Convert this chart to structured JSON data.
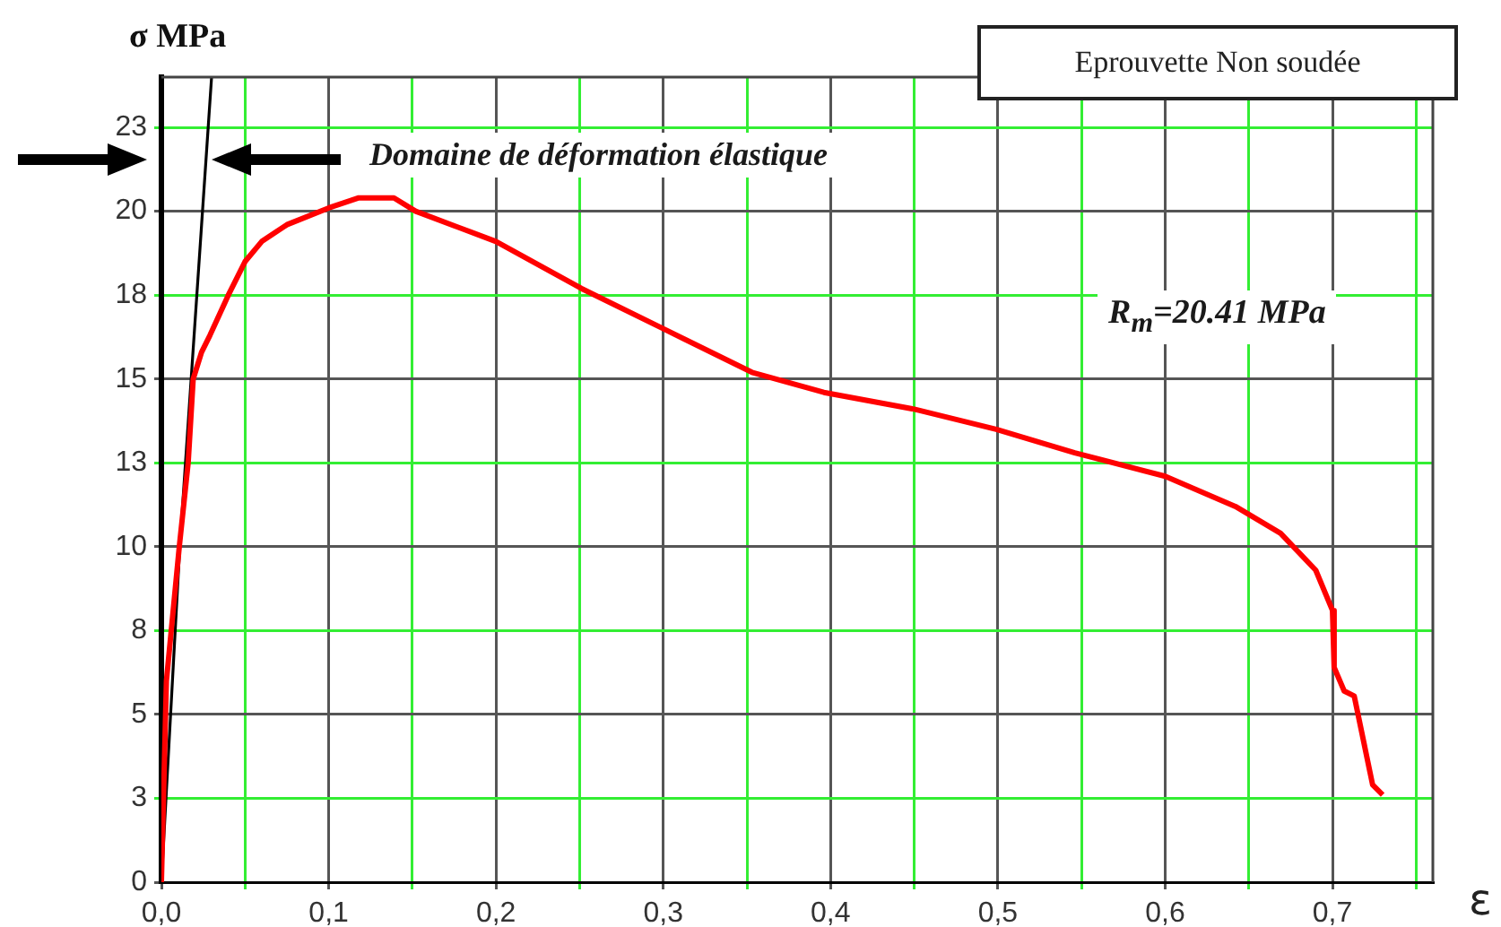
{
  "chart_data": {
    "type": "line",
    "title": "Eprouvette Non soudée",
    "xlabel": "ε",
    "ylabel": "σ MPa",
    "annotations": [
      "Domaine de déformation élastique",
      "R$_{m}$=20.41 MPa"
    ],
    "xlim": [
      0,
      0.76
    ],
    "ylim": [
      0,
      24
    ],
    "xticks": [
      {
        "value": 0,
        "label": "0,0"
      },
      {
        "value": 0.05,
        "label": null
      },
      {
        "value": 0.1,
        "label": "0,1"
      },
      {
        "value": 0.15,
        "label": null
      },
      {
        "value": 0.2,
        "label": "0,2"
      },
      {
        "value": 0.25,
        "label": null
      },
      {
        "value": 0.3,
        "label": "0,3"
      },
      {
        "value": 0.35,
        "label": null
      },
      {
        "value": 0.4,
        "label": "0,4"
      },
      {
        "value": 0.45,
        "label": null
      },
      {
        "value": 0.5,
        "label": "0,5"
      },
      {
        "value": 0.55,
        "label": null
      },
      {
        "value": 0.6,
        "label": "0,6"
      },
      {
        "value": 0.65,
        "label": null
      },
      {
        "value": 0.7,
        "label": "0,7"
      },
      {
        "value": 0.75,
        "label": null
      }
    ],
    "yticks": [
      0,
      {
        "value": 2.5,
        "label": "3"
      },
      5,
      {
        "value": 7.5,
        "label": "8"
      },
      10,
      {
        "value": 12.5,
        "label": "13"
      },
      15,
      {
        "value": 17.5,
        "label": "18"
      },
      20,
      {
        "value": 22.5,
        "label": "23"
      }
    ],
    "grid": true,
    "legend": false,
    "marker": "none",
    "line_style": "solid",
    "series": [
      {
        "color": "#ff0000",
        "x": [
          0,
          0.003,
          0.0107,
          0.016,
          0.019,
          0.024,
          0.029,
          0.04,
          0.05,
          0.06,
          0.075,
          0.1,
          0.118,
          0.139,
          0.152,
          0.2,
          0.251,
          0.3,
          0.353,
          0.396,
          0.45,
          0.499,
          0.546,
          0.6,
          0.642,
          0.669,
          0.69,
          0.7,
          0.701,
          0.707,
          0.713,
          0.724,
          0.73
        ],
        "values": [
          0,
          6,
          10,
          12.5,
          15,
          15.8,
          16.3,
          17.5,
          18.5,
          19.1,
          19.6,
          20.1,
          20.4,
          20.4,
          20,
          19.1,
          17.7,
          16.5,
          15.2,
          14.6,
          14.1,
          13.5,
          12.8,
          12.1,
          11.2,
          10.4,
          9.3,
          8.1,
          6.4,
          5.7,
          5.55,
          2.9,
          2.6
        ]
      },
      {
        "type": "line",
        "color": "#000000",
        "x": [
          0,
          0.011,
          0.03
        ],
        "values": [
          0,
          10,
          24
        ]
      }
    ]
  }
}
